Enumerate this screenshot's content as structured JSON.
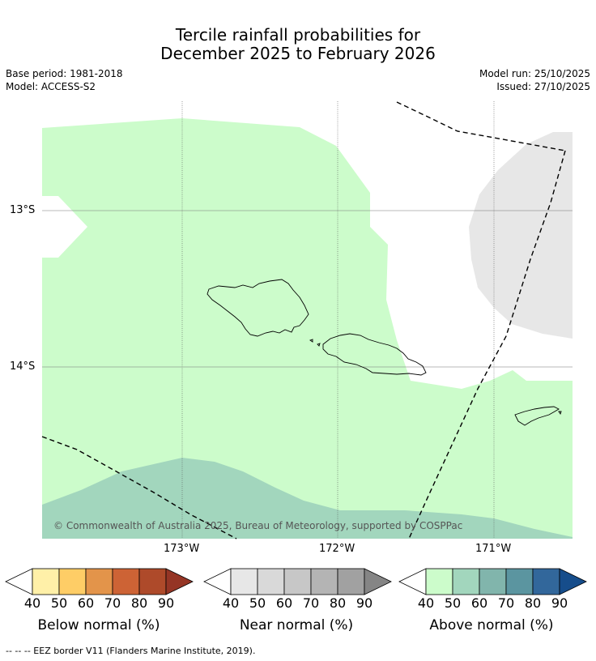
{
  "title": {
    "line1": "Tercile rainfall probabilities for",
    "line2": "December 2025 to February 2026"
  },
  "meta": {
    "base_period": "Base period: 1981-2018",
    "model": "Model: ACCESS-S2",
    "model_run": "Model run: 25/10/2025",
    "issued": "Issued: 27/10/2025"
  },
  "map": {
    "lat_labels": [
      "13°S",
      "14°S"
    ],
    "lon_labels": [
      "173°W",
      "172°W",
      "171°W"
    ],
    "copyright": "© Commonwealth of Australia 2025, Bureau of Meteorology, supported by COSPPac"
  },
  "colorbars": [
    {
      "label": "Below normal (%)",
      "ticks": [
        "40",
        "50",
        "60",
        "70",
        "80",
        "90"
      ],
      "colors": [
        "#ffffff",
        "#fff0a8",
        "#fecd66",
        "#e3944a",
        "#cd6335",
        "#ae4a2a",
        "#953525"
      ]
    },
    {
      "label": "Near normal (%)",
      "ticks": [
        "40",
        "50",
        "60",
        "70",
        "80",
        "90"
      ],
      "colors": [
        "#ffffff",
        "#e7e7e7",
        "#d9d9d9",
        "#c7c7c7",
        "#b4b4b4",
        "#a1a1a1",
        "#858585"
      ]
    },
    {
      "label": "Above normal (%)",
      "ticks": [
        "40",
        "50",
        "60",
        "70",
        "80",
        "90"
      ],
      "colors": [
        "#ffffff",
        "#ccfccb",
        "#a2d6bd",
        "#81b5ac",
        "#5b95a0",
        "#32679b",
        "#164d8b"
      ]
    }
  ],
  "footnote": "-- -- -- EEZ border V11 (Flanders Marine Institute, 2019)."
}
